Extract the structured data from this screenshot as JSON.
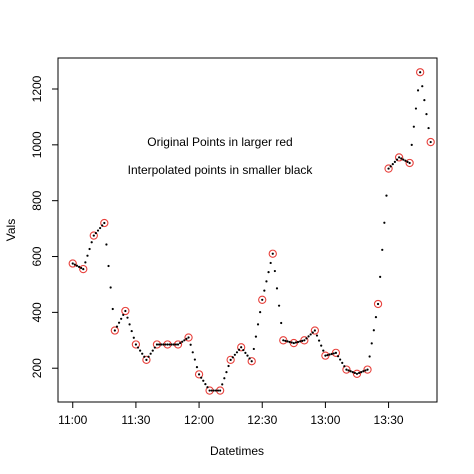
{
  "chart_data": {
    "type": "scatter",
    "xlabel": "Datetimes",
    "ylabel": "Vals",
    "annotations": [
      "Original Points in larger red",
      "Interpolated points in smaller black"
    ],
    "xlim": [
      "10:53",
      "13:53"
    ],
    "xticks": [
      "11:00",
      "11:30",
      "12:00",
      "12:30",
      "13:00",
      "13:30"
    ],
    "ylim": [
      79,
      1311
    ],
    "yticks": [
      200,
      400,
      600,
      800,
      1000,
      1200
    ],
    "series": [
      {
        "color": "#e8413c",
        "marker": "circle-open",
        "x": [
          "11:00",
          "11:05",
          "11:10",
          "11:15",
          "11:20",
          "11:25",
          "11:30",
          "11:35",
          "11:40",
          "11:45",
          "11:50",
          "11:55",
          "12:00",
          "12:05",
          "12:10",
          "12:15",
          "12:20",
          "12:25",
          "12:30",
          "12:35",
          "12:40",
          "12:45",
          "12:50",
          "12:55",
          "13:00",
          "13:05",
          "13:10",
          "13:15",
          "13:20",
          "13:25",
          "13:30",
          "13:35",
          "13:40",
          "13:45",
          "13:50"
        ],
        "values": [
          575,
          555,
          675,
          720,
          335,
          405,
          285,
          230,
          285,
          285,
          285,
          310,
          178,
          120,
          120,
          230,
          275,
          225,
          445,
          610,
          300,
          290,
          300,
          335,
          245,
          255,
          195,
          180,
          195,
          430,
          915,
          955,
          935,
          1260,
          1010
        ]
      },
      {
        "color": "#000000",
        "marker": "dot",
        "x": [
          "11:00",
          "11:01",
          "11:02",
          "11:03",
          "11:04",
          "11:05",
          "11:06",
          "11:07",
          "11:08",
          "11:09",
          "11:10",
          "11:11",
          "11:12",
          "11:13",
          "11:14",
          "11:15",
          "11:16",
          "11:17",
          "11:18",
          "11:19",
          "11:20",
          "11:21",
          "11:22",
          "11:23",
          "11:24",
          "11:25",
          "11:26",
          "11:27",
          "11:28",
          "11:29",
          "11:30",
          "11:31",
          "11:32",
          "11:33",
          "11:34",
          "11:35",
          "11:36",
          "11:37",
          "11:38",
          "11:39",
          "11:40",
          "11:41",
          "11:42",
          "11:43",
          "11:44",
          "11:45",
          "11:46",
          "11:47",
          "11:48",
          "11:49",
          "11:50",
          "11:51",
          "11:52",
          "11:53",
          "11:54",
          "11:55",
          "11:56",
          "11:57",
          "11:58",
          "11:59",
          "12:00",
          "12:01",
          "12:02",
          "12:03",
          "12:04",
          "12:05",
          "12:06",
          "12:07",
          "12:08",
          "12:09",
          "12:10",
          "12:11",
          "12:12",
          "12:13",
          "12:14",
          "12:15",
          "12:16",
          "12:17",
          "12:18",
          "12:19",
          "12:20",
          "12:21",
          "12:22",
          "12:23",
          "12:24",
          "12:25",
          "12:26",
          "12:27",
          "12:28",
          "12:29",
          "12:30",
          "12:31",
          "12:32",
          "12:33",
          "12:34",
          "12:35",
          "12:36",
          "12:37",
          "12:38",
          "12:39",
          "12:40",
          "12:41",
          "12:42",
          "12:43",
          "12:44",
          "12:45",
          "12:46",
          "12:47",
          "12:48",
          "12:49",
          "12:50",
          "12:51",
          "12:52",
          "12:53",
          "12:54",
          "12:55",
          "12:56",
          "12:57",
          "12:58",
          "12:59",
          "13:00",
          "13:01",
          "13:02",
          "13:03",
          "13:04",
          "13:05",
          "13:06",
          "13:07",
          "13:08",
          "13:09",
          "13:10",
          "13:11",
          "13:12",
          "13:13",
          "13:14",
          "13:15",
          "13:16",
          "13:17",
          "13:18",
          "13:19",
          "13:20",
          "13:21",
          "13:22",
          "13:23",
          "13:24",
          "13:25",
          "13:26",
          "13:27",
          "13:28",
          "13:29",
          "13:30",
          "13:31",
          "13:32",
          "13:33",
          "13:34",
          "13:35",
          "13:36",
          "13:37",
          "13:38",
          "13:39",
          "13:40",
          "13:41",
          "13:42",
          "13:43",
          "13:44",
          "13:45",
          "13:46",
          "13:47",
          "13:48",
          "13:49",
          "13:50"
        ],
        "values": [
          575,
          571,
          567,
          563,
          559,
          555,
          579,
          603,
          627,
          651,
          675,
          684,
          693,
          702,
          711,
          720,
          643,
          566,
          489,
          412,
          335,
          349,
          363,
          377,
          391,
          405,
          381,
          357,
          333,
          309,
          285,
          274,
          263,
          252,
          241,
          230,
          241,
          252,
          263,
          274,
          285,
          285,
          285,
          285,
          285,
          285,
          285,
          285,
          285,
          285,
          285,
          290,
          295,
          300,
          305,
          310,
          284,
          257,
          231,
          204,
          178,
          166,
          155,
          143,
          132,
          120,
          120,
          120,
          120,
          120,
          120,
          142,
          164,
          186,
          208,
          230,
          239,
          248,
          257,
          266,
          275,
          265,
          255,
          245,
          235,
          225,
          269,
          313,
          357,
          401,
          445,
          478,
          511,
          544,
          577,
          610,
          548,
          486,
          424,
          362,
          300,
          298,
          296,
          294,
          292,
          290,
          292,
          294,
          296,
          298,
          300,
          307,
          314,
          321,
          328,
          335,
          317,
          299,
          281,
          263,
          245,
          247,
          249,
          251,
          253,
          255,
          243,
          231,
          219,
          207,
          195,
          192,
          189,
          186,
          183,
          180,
          183,
          186,
          189,
          192,
          195,
          242,
          289,
          336,
          383,
          430,
          527,
          624,
          721,
          818,
          915,
          923,
          931,
          939,
          947,
          955,
          951,
          947,
          943,
          939,
          935,
          1000,
          1065,
          1130,
          1195,
          1260,
          1210,
          1160,
          1110,
          1060,
          1010
        ]
      }
    ]
  }
}
